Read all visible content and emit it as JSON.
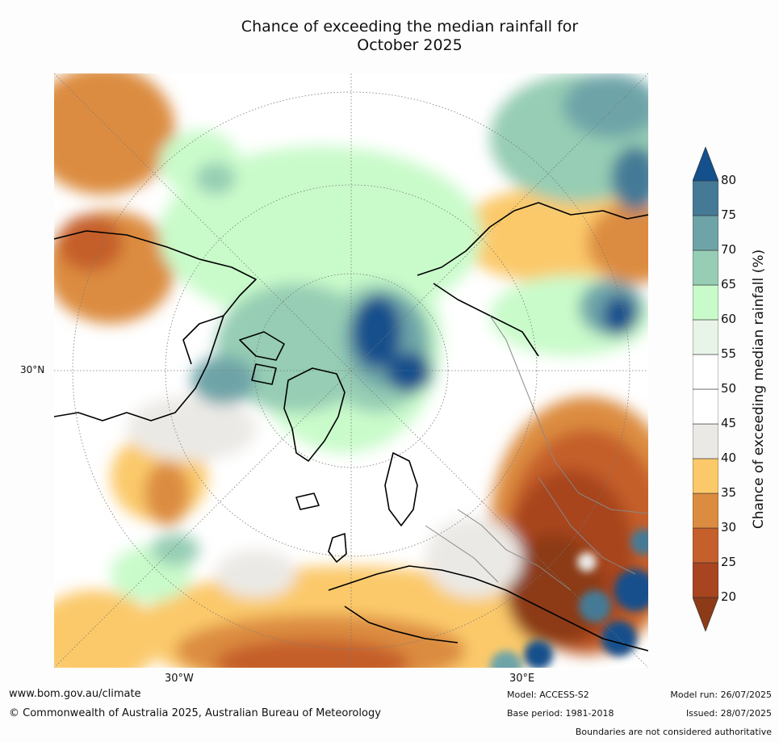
{
  "title_line1": "Chance of exceeding the median rainfall for",
  "title_line2": "October 2025",
  "lat_labels": {
    "lat30n": "30°N"
  },
  "lon_labels": {
    "lon30w": "30°W",
    "lon30e": "30°E"
  },
  "colorbar": {
    "label": "Chance of exceeding median rainfall (%)",
    "ticks": [
      "80",
      "75",
      "70",
      "65",
      "60",
      "55",
      "50",
      "45",
      "40",
      "35",
      "30",
      "25",
      "20"
    ],
    "bands": [
      {
        "range": "<20",
        "color": "#8c3a18"
      },
      {
        "range": "20-25",
        "color": "#a8441f"
      },
      {
        "range": "25-30",
        "color": "#c55f2c"
      },
      {
        "range": "30-35",
        "color": "#dc8c40"
      },
      {
        "range": "35-40",
        "color": "#fbc96a"
      },
      {
        "range": "40-45",
        "color": "#ebe9e5"
      },
      {
        "range": "45-50",
        "color": "#ffffff"
      },
      {
        "range": "50-55",
        "color": "#ffffff"
      },
      {
        "range": "55-60",
        "color": "#e8f4e7"
      },
      {
        "range": "60-65",
        "color": "#c9fbca"
      },
      {
        "range": "65-70",
        "color": "#96cdb4"
      },
      {
        "range": "70-75",
        "color": "#6ea4a8"
      },
      {
        "range": "75-80",
        "color": "#457a96"
      },
      {
        "range": ">80",
        "color": "#13508c"
      }
    ]
  },
  "footer": {
    "website": "www.bom.gov.au/climate",
    "copyright": "© Commonwealth of Australia 2025, Australian Bureau of Meteorology",
    "model": "Model: ACCESS-S2",
    "base_period": "Base period: 1981-2018",
    "model_run": "Model run: 26/07/2025",
    "issued": "Issued: 28/07/2025",
    "disclaimer": "Boundaries are not considered authoritative"
  }
}
